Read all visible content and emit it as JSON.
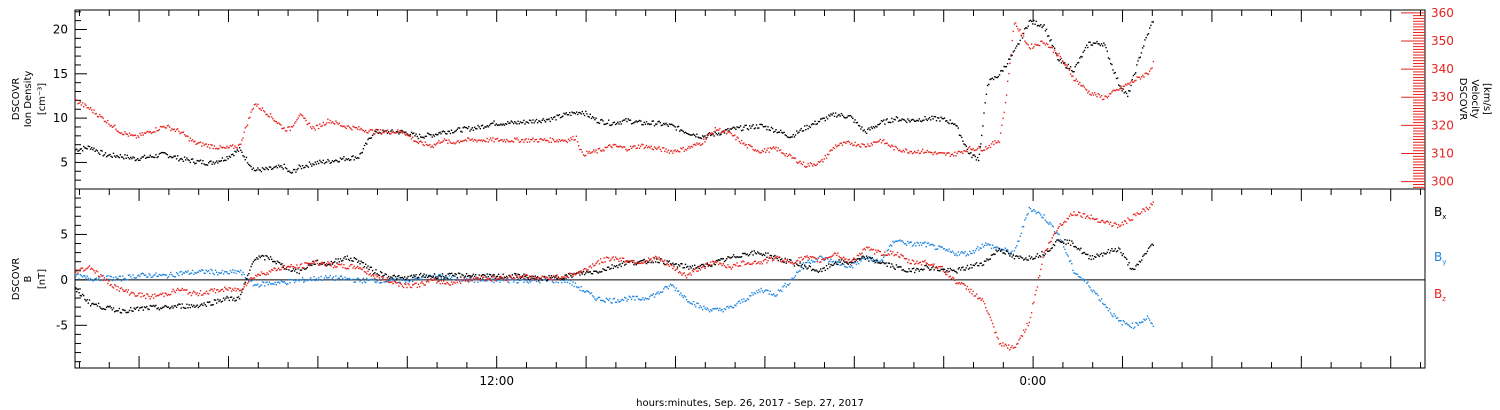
{
  "colors": {
    "black": "#000000",
    "red": "#e8231e",
    "blue": "#1f86e0"
  },
  "chart_data": [
    {
      "type": "scatter",
      "panel": "top",
      "ylabel": [
        "DSCOVR",
        "Ion Density",
        "[cm⁻³]"
      ],
      "y2label": [
        "DSCOVR",
        "Velocity",
        "[km/s]"
      ],
      "ylim": [
        2,
        22.2
      ],
      "y2lim": [
        297.4,
        361
      ],
      "yticks": [
        "5",
        "10",
        "15",
        "20"
      ],
      "y2ticks": [
        "300",
        "310",
        "320",
        "330",
        "340",
        "350",
        "360"
      ],
      "xlabel": "hours:minutes, Sep. 26, 2017 - Sep. 27, 2017",
      "xlim": [
        0,
        45.3
      ],
      "xticks": [
        {
          "x": 14.15,
          "label": "12:00"
        },
        {
          "x": 32.14,
          "label": "0:00"
        }
      ],
      "series": [
        {
          "name": "Ion Density",
          "axis": "left",
          "color": "#000000",
          "x": [
            0,
            0.5,
            1.0,
            1.5,
            2.0,
            2.5,
            3.0,
            3.5,
            4.0,
            4.5,
            5.0,
            5.5,
            6.0,
            6.5,
            7.0,
            7.2,
            7.5,
            8.0,
            8.5,
            9.0,
            9.5,
            10.0,
            10.5,
            11.0,
            11.5,
            12.0,
            12.3,
            13.0,
            13.5,
            14.0,
            14.5,
            15.0,
            15.5,
            16.0,
            16.5,
            17.0,
            17.5,
            18.0,
            18.5,
            19.0,
            19.5,
            20.0,
            20.5,
            21.0,
            21.5,
            22.0,
            22.5,
            23.0,
            23.5,
            24.0,
            24.5,
            25.0,
            25.5,
            26.0,
            26.5,
            27.0,
            27.5,
            28.0,
            28.5,
            29.0,
            29.5,
            30.0,
            30.3,
            30.4,
            30.6,
            31.0,
            31.5,
            32.0,
            32.5,
            33.0,
            33.5,
            34.0,
            34.5,
            35.0,
            35.3,
            35.8,
            36.2
          ],
          "y": [
            6.5,
            6.8,
            5.9,
            5.8,
            5.5,
            5.7,
            6.0,
            5.5,
            5.2,
            5.0,
            5.5,
            6.5,
            4.2,
            4.3,
            4.6,
            3.8,
            4.5,
            5.0,
            5.2,
            5.5,
            5.7,
            8.5,
            8.5,
            8.5,
            8.0,
            8.2,
            8.5,
            8.8,
            9.0,
            9.5,
            9.5,
            9.6,
            9.8,
            10.0,
            10.5,
            10.8,
            9.8,
            9.5,
            9.8,
            9.5,
            9.5,
            9.2,
            8.5,
            8.0,
            8.3,
            8.8,
            9.0,
            9.2,
            8.7,
            8.0,
            9.0,
            9.8,
            10.5,
            10.2,
            8.5,
            9.5,
            10.0,
            9.8,
            10.0,
            10.0,
            9.5,
            6.0,
            5.5,
            8.0,
            14.0,
            15.0,
            17.5,
            21.0,
            20.5,
            16.5,
            15.5,
            18.5,
            18.5,
            14.0,
            12.5,
            18.0,
            21.5
          ]
        },
        {
          "name": "Velocity",
          "axis": "right",
          "color": "#e8231e",
          "x": [
            0,
            0.5,
            1.0,
            1.5,
            2.0,
            2.5,
            3.0,
            3.5,
            4.0,
            4.5,
            5.0,
            5.5,
            6.0,
            6.5,
            7.0,
            7.2,
            7.5,
            8.0,
            8.5,
            9.0,
            9.5,
            10.0,
            10.5,
            11.0,
            11.5,
            12.0,
            12.3,
            12.6,
            13.0,
            13.5,
            14.0,
            14.5,
            15.0,
            15.5,
            16.0,
            16.5,
            16.8,
            17.0,
            17.5,
            18.0,
            18.5,
            19.0,
            19.5,
            20.0,
            20.5,
            21.0,
            21.5,
            22.0,
            22.5,
            23.0,
            23.5,
            24.0,
            24.5,
            25.0,
            25.5,
            26.0,
            26.5,
            27.0,
            27.5,
            28.0,
            28.5,
            29.0,
            29.5,
            30.0,
            30.5,
            31.0,
            31.2,
            31.5,
            32.0,
            32.5,
            33.0,
            33.5,
            34.0,
            34.5,
            35.0,
            35.5,
            36.0,
            36.2
          ],
          "y": [
            329,
            326,
            322,
            318,
            316,
            318,
            320,
            318,
            314,
            313,
            312,
            313,
            328,
            324,
            319,
            319,
            324,
            319,
            322,
            320,
            319,
            318,
            318,
            318,
            314,
            313,
            315,
            314,
            315,
            315,
            315,
            315,
            315,
            315,
            315,
            315,
            316,
            310,
            311,
            313,
            312,
            313,
            312,
            311,
            312,
            314,
            319,
            317,
            313,
            311,
            312,
            309,
            306,
            307,
            313,
            314,
            313,
            315,
            312,
            311,
            311,
            310,
            310,
            312,
            312,
            315,
            328,
            357,
            348,
            350,
            345,
            337,
            332,
            330,
            333,
            336,
            339,
            343
          ]
        }
      ]
    },
    {
      "type": "scatter",
      "panel": "bottom",
      "ylabel": [
        "DSCOVR",
        "B",
        "[nT]"
      ],
      "ylim": [
        -9.7,
        10
      ],
      "yticks": [
        "5",
        "0",
        "-5"
      ],
      "zero_line": true,
      "xlim": [
        0,
        45.3
      ],
      "series": [
        {
          "name": "Bx",
          "label": "B",
          "subscript": "x",
          "color": "#000000",
          "x": [
            0,
            0.5,
            1.0,
            1.5,
            2.0,
            2.5,
            3.0,
            3.5,
            4.0,
            4.5,
            5.0,
            5.5,
            6.0,
            6.5,
            7.0,
            7.5,
            8.0,
            8.5,
            9.0,
            9.5,
            10.0,
            10.5,
            11.0,
            11.5,
            12.0,
            12.5,
            13.0,
            13.5,
            14.0,
            14.5,
            15.0,
            15.5,
            16.0,
            16.5,
            17.0,
            17.5,
            18.0,
            18.5,
            19.0,
            19.5,
            20.0,
            20.5,
            21.0,
            21.5,
            22.0,
            22.5,
            23.0,
            23.5,
            24.0,
            24.5,
            25.0,
            25.5,
            26.0,
            26.5,
            27.0,
            27.5,
            28.0,
            28.5,
            29.0,
            29.5,
            30.0,
            30.5,
            31.0,
            31.5,
            32.0,
            32.5,
            33.0,
            33.5,
            34.0,
            34.5,
            35.0,
            35.5,
            36.0,
            36.2
          ],
          "y": [
            -1.0,
            -2.5,
            -3.0,
            -3.3,
            -3.2,
            -3.0,
            -3.0,
            -2.8,
            -2.8,
            -2.5,
            -2.0,
            -2.0,
            2.5,
            2.5,
            1.5,
            1.0,
            2.0,
            1.8,
            2.5,
            2.2,
            1.0,
            0.5,
            0.2,
            0.5,
            0.5,
            0.5,
            0.6,
            0.5,
            0.4,
            0.5,
            0.5,
            0.2,
            0.3,
            0.5,
            0.8,
            1.0,
            1.5,
            2.0,
            2.0,
            2.3,
            1.8,
            1.5,
            1.5,
            2.0,
            2.5,
            3.0,
            3.0,
            2.5,
            2.0,
            1.5,
            1.0,
            2.0,
            2.0,
            2.5,
            2.0,
            1.5,
            1.0,
            1.5,
            1.2,
            1.0,
            1.5,
            2.0,
            3.5,
            2.5,
            2.5,
            3.0,
            4.5,
            4.0,
            2.5,
            3.0,
            3.5,
            1.0,
            3.5,
            4.0
          ]
        },
        {
          "name": "By",
          "label": "B",
          "subscript": "y",
          "color": "#1f86e0",
          "x": [
            0,
            0.5,
            1.0,
            1.5,
            2.0,
            2.5,
            3.0,
            3.5,
            4.0,
            4.5,
            5.0,
            5.5,
            6.0,
            6.5,
            7.0,
            7.5,
            8.0,
            8.5,
            9.0,
            9.5,
            10.0,
            10.5,
            11.0,
            11.5,
            12.0,
            12.5,
            13.0,
            13.5,
            14.0,
            14.5,
            15.0,
            15.5,
            16.0,
            16.5,
            17.0,
            17.5,
            18.0,
            18.5,
            19.0,
            19.5,
            20.0,
            20.5,
            21.0,
            21.5,
            22.0,
            22.5,
            23.0,
            23.5,
            24.0,
            24.5,
            25.0,
            25.5,
            26.0,
            26.5,
            27.0,
            27.5,
            28.0,
            28.5,
            29.0,
            29.5,
            30.0,
            30.5,
            31.0,
            31.5,
            32.0,
            32.5,
            33.0,
            33.5,
            34.0,
            34.5,
            35.0,
            35.5,
            36.0,
            36.2
          ],
          "y": [
            0.5,
            0.2,
            0.3,
            0.2,
            0.5,
            0.6,
            0.5,
            0.8,
            0.9,
            1.0,
            0.8,
            1.0,
            -0.5,
            -0.3,
            -0.2,
            0.0,
            0.2,
            0.3,
            0.2,
            0.0,
            0.0,
            0.0,
            0.0,
            0.2,
            0.5,
            0.3,
            0.2,
            0.0,
            0.0,
            0.0,
            0.0,
            0.0,
            0.0,
            0.0,
            -1.0,
            -2.0,
            -2.2,
            -2.0,
            -2.0,
            -1.5,
            -0.5,
            -2.0,
            -3.0,
            -3.3,
            -3.0,
            -2.0,
            -1.0,
            -1.5,
            0.0,
            2.0,
            2.5,
            2.0,
            1.5,
            2.5,
            2.0,
            4.5,
            4.0,
            4.0,
            3.5,
            3.0,
            3.0,
            4.0,
            3.5,
            3.0,
            8.0,
            7.0,
            5.0,
            1.0,
            -0.5,
            -2.5,
            -4.5,
            -5.0,
            -4.0,
            -5.5
          ]
        },
        {
          "name": "Bz",
          "label": "B",
          "subscript": "z",
          "color": "#e8231e",
          "x": [
            0,
            0.5,
            1.0,
            1.5,
            2.0,
            2.5,
            3.0,
            3.5,
            4.0,
            4.5,
            5.0,
            5.5,
            6.0,
            6.5,
            7.0,
            7.5,
            8.0,
            8.5,
            9.0,
            9.5,
            10.0,
            10.5,
            11.0,
            11.5,
            12.0,
            12.5,
            13.0,
            13.5,
            14.0,
            14.5,
            15.0,
            15.5,
            16.0,
            16.5,
            17.0,
            17.5,
            18.0,
            18.5,
            19.0,
            19.5,
            20.0,
            20.5,
            21.0,
            21.5,
            22.0,
            22.5,
            23.0,
            23.5,
            24.0,
            24.5,
            25.0,
            25.5,
            26.0,
            26.5,
            27.0,
            27.5,
            28.0,
            28.5,
            29.0,
            29.5,
            30.0,
            30.5,
            31.0,
            31.5,
            32.0,
            32.5,
            33.0,
            33.5,
            34.0,
            34.5,
            35.0,
            35.5,
            36.0,
            36.2
          ],
          "y": [
            1.0,
            1.5,
            0.0,
            -1.0,
            -1.5,
            -1.8,
            -1.5,
            -1.0,
            -1.5,
            -1.2,
            -1.0,
            -1.0,
            0.5,
            1.0,
            1.5,
            1.5,
            2.0,
            1.8,
            1.5,
            1.5,
            0.5,
            0.0,
            -0.5,
            -0.5,
            0.0,
            -0.3,
            0.0,
            0.3,
            0.2,
            0.3,
            0.5,
            0.2,
            0.3,
            0.5,
            1.0,
            2.0,
            2.5,
            2.2,
            2.0,
            2.5,
            1.5,
            0.5,
            1.5,
            2.0,
            1.5,
            2.0,
            2.0,
            2.5,
            2.0,
            2.5,
            2.2,
            3.0,
            2.0,
            3.5,
            3.0,
            3.0,
            2.0,
            2.0,
            1.5,
            0.0,
            -1.0,
            -2.5,
            -7.0,
            -7.5,
            -4.5,
            3.0,
            6.0,
            7.5,
            7.0,
            6.5,
            6.0,
            7.0,
            8.0,
            8.5
          ]
        }
      ]
    }
  ]
}
